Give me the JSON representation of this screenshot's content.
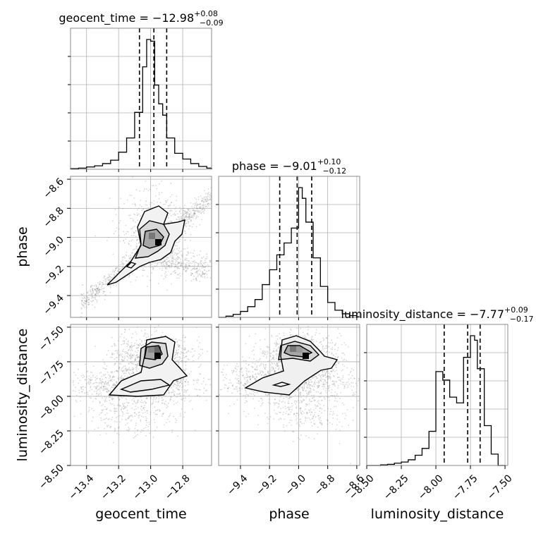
{
  "chart_data": {
    "type": "corner",
    "parameters": [
      "geocent_time",
      "phase",
      "luminosity_distance"
    ],
    "titles": [
      {
        "parameter": "geocent_time",
        "prefix": "geocent_time = ",
        "median": "−12.98",
        "upper": "+0.08",
        "lower": "−0.09"
      },
      {
        "parameter": "phase",
        "prefix": "phase = ",
        "median": "−9.01",
        "upper": "+0.10",
        "lower": "−0.12"
      },
      {
        "parameter": "luminosity_distance",
        "prefix": "luminosity_distance = ",
        "median": "−7.77",
        "upper": "+0.09",
        "lower": "−0.17"
      }
    ],
    "ranges": {
      "geocent_time": [
        -13.5,
        -12.62
      ],
      "phase": [
        -9.55,
        -8.58
      ],
      "luminosity_distance": [
        -8.5,
        -7.48
      ]
    },
    "ticks": {
      "geocent_time": {
        "values": [
          -13.4,
          -13.2,
          -13.0,
          -12.8
        ],
        "labels": [
          "−13.4",
          "−13.2",
          "−13.0",
          "−12.8"
        ]
      },
      "phase": {
        "values": [
          -9.4,
          -9.2,
          -9.0,
          -8.8,
          -8.6
        ],
        "labels": [
          "−9.4",
          "−9.2",
          "−9.0",
          "−8.8",
          "−8.6"
        ]
      },
      "luminosity_distance": {
        "values": [
          -8.5,
          -8.25,
          -8.0,
          -7.75,
          -7.5
        ],
        "labels": [
          "−8.50",
          "−8.25",
          "−8.00",
          "−7.75",
          "−7.50"
        ]
      }
    },
    "axis_labels": {
      "bottom": [
        "geocent_time",
        "phase",
        "luminosity_distance"
      ],
      "left": [
        "phase",
        "luminosity_distance"
      ]
    },
    "histograms": {
      "geocent_time": {
        "bin_edges": [
          -13.5,
          -13.45,
          -13.4,
          -13.35,
          -13.3,
          -13.25,
          -13.2,
          -13.15,
          -13.1,
          -13.05,
          -13.025,
          -13.0,
          -12.975,
          -12.95,
          -12.925,
          -12.9,
          -12.85,
          -12.8,
          -12.75,
          -12.7,
          -12.65,
          -12.62
        ],
        "counts": [
          1,
          2,
          4,
          6,
          10,
          16,
          30,
          55,
          100,
          180,
          228,
          225,
          148,
          115,
          95,
          55,
          28,
          18,
          10,
          5,
          2
        ]
      },
      "phase": {
        "bin_edges": [
          -9.55,
          -9.5,
          -9.45,
          -9.4,
          -9.35,
          -9.3,
          -9.25,
          -9.2,
          -9.15,
          -9.1,
          -9.05,
          -9.0,
          -8.975,
          -8.95,
          -8.9,
          -8.85,
          -8.8,
          -8.75,
          -8.7,
          -8.65,
          -8.6,
          -8.58
        ],
        "counts": [
          0,
          2,
          5,
          10,
          18,
          30,
          55,
          80,
          105,
          125,
          150,
          218,
          200,
          160,
          100,
          52,
          25,
          12,
          6,
          3,
          1
        ]
      },
      "luminosity_distance": {
        "bin_edges": [
          -8.5,
          -8.45,
          -8.4,
          -8.35,
          -8.3,
          -8.25,
          -8.2,
          -8.15,
          -8.1,
          -8.05,
          -8.0,
          -7.95,
          -7.9,
          -7.85,
          -7.8,
          -7.75,
          -7.72,
          -7.7,
          -7.65,
          -7.6,
          -7.55,
          -7.5
        ],
        "counts": [
          0,
          0,
          1,
          2,
          4,
          6,
          10,
          18,
          30,
          60,
          165,
          150,
          120,
          110,
          190,
          228,
          220,
          170,
          70,
          20,
          0
        ]
      }
    },
    "quantiles": {
      "geocent_time": [
        -13.07,
        -12.98,
        -12.9
      ],
      "phase": [
        -9.13,
        -9.01,
        -8.91
      ],
      "luminosity_distance": [
        -7.94,
        -7.77,
        -7.68
      ]
    },
    "grid": true,
    "colors": {
      "line": "#000000",
      "grid": "#b0b0b0",
      "points": "#8c8c8c"
    }
  }
}
